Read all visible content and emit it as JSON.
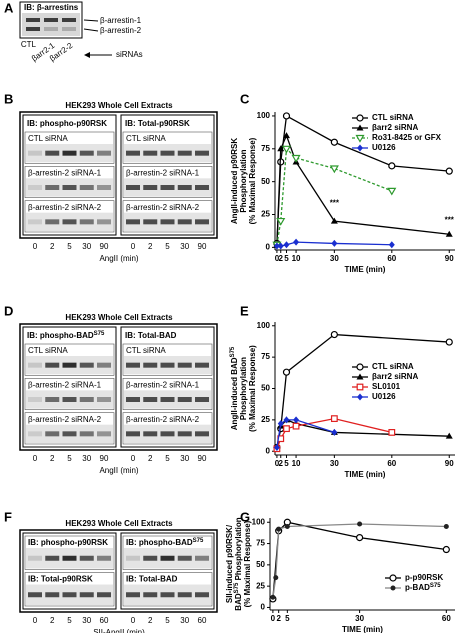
{
  "panels": [
    "A",
    "B",
    "C",
    "D",
    "E",
    "F",
    "G"
  ],
  "panel_a": {
    "header": "IB: β-arrestins",
    "bands": [
      "β-arrestin-1",
      "β-arrestin-2"
    ],
    "lanes": [
      "CTL",
      "βarr2-1",
      "βarr2-2"
    ],
    "lane_note": "siRNAs"
  },
  "blots": [
    {
      "title": "HEK293 Whole Cell Extracts",
      "boxes": [
        {
          "header": "IB: phospho-p90RSK",
          "rows": [
            "CTL siRNA",
            "β-arrestin-2 siRNA-1",
            "β-arrestin-2 siRNA-2"
          ]
        },
        {
          "header": "IB: Total-p90RSK",
          "rows": [
            "CTL siRNA",
            "β-arrestin-2 siRNA-1",
            "β-arrestin-2 siRNA-2"
          ]
        }
      ],
      "lanes": [
        0,
        2,
        5,
        30,
        90
      ],
      "x_label": "AngII (min)"
    },
    {
      "title": "HEK293 Whole Cell Extracts",
      "boxes": [
        {
          "header": [
            "IB: phospho-BAD",
            {
              "sup": "S75"
            }
          ],
          "rows": [
            "CTL siRNA",
            "β-arrestin-2 siRNA-1",
            "β-arrestin-2 siRNA-2"
          ]
        },
        {
          "header": "IB: Total-BAD",
          "rows": [
            "CTL siRNA",
            "β-arrestin-2 siRNA-1",
            "β-arrestin-2 siRNA-2"
          ]
        }
      ],
      "lanes": [
        0,
        2,
        5,
        30,
        90
      ],
      "x_label": "AngII (min)"
    },
    {
      "title": "HEK293 Whole Cell Extracts",
      "boxes": [
        {
          "rows": [
            "IB: phospho-p90RSK",
            "IB: Total-p90RSK"
          ]
        },
        {
          "rows": [
            [
              "IB: phospho-BAD",
              {
                "sup": "S75"
              }
            ],
            "IB: Total-BAD"
          ]
        }
      ],
      "lanes": [
        0,
        2,
        5,
        30,
        60
      ],
      "x_label": "SII-AngII (min)"
    }
  ],
  "chart_data": [
    {
      "type": "line",
      "x_label": "TIME (min)",
      "y_label": [
        "AngII-induced p90RSK",
        "Phosphorylation",
        "(% Maximal Response)"
      ],
      "xlim": [
        -1,
        93
      ],
      "ylim": [
        -2,
        103
      ],
      "xticks": [
        0,
        2,
        5,
        10,
        30,
        60,
        90
      ],
      "yticks": [
        0,
        25,
        50,
        75,
        100
      ],
      "series": [
        {
          "name": "CTL siRNA",
          "color": "#000000",
          "marker": "circle-open",
          "x": [
            0,
            2,
            5,
            30,
            60,
            90
          ],
          "values": [
            3,
            65,
            100,
            80,
            62,
            58
          ]
        },
        {
          "name": "βarr2 siRNA",
          "color": "#000000",
          "marker": "triangle",
          "x": [
            0,
            2,
            5,
            10,
            30,
            90
          ],
          "values": [
            2,
            75,
            85,
            65,
            20,
            10
          ]
        },
        {
          "name": "Ro31-8425 or GFX",
          "color": "#2e9a2e",
          "marker": "triangle-down-open",
          "dashed": true,
          "x": [
            0,
            2,
            5,
            10,
            30,
            60
          ],
          "values": [
            2,
            20,
            75,
            68,
            60,
            43
          ]
        },
        {
          "name": "U0126",
          "color": "#1a2fd0",
          "marker": "diamond",
          "x": [
            0,
            2,
            5,
            10,
            30,
            60
          ],
          "values": [
            1,
            1,
            2,
            4,
            3,
            2
          ]
        }
      ],
      "annotations": [
        {
          "text": "***",
          "x": 30,
          "y": 29
        },
        {
          "text": "***",
          "x": 90,
          "y": 16
        }
      ]
    },
    {
      "type": "line",
      "x_label": "TIME (min)",
      "y_label": [
        [
          "AngII-induced BAD",
          {
            "sup": "S75"
          }
        ],
        "Phosphorylation",
        "(% Maximal Response)"
      ],
      "xlim": [
        -1,
        93
      ],
      "ylim": [
        -3,
        103
      ],
      "xticks": [
        0,
        2,
        5,
        10,
        30,
        60,
        90
      ],
      "yticks": [
        0,
        25,
        50,
        75,
        100
      ],
      "series": [
        {
          "name": "CTL siRNA",
          "color": "#000000",
          "marker": "circle-open",
          "x": [
            0,
            2,
            5,
            30,
            90
          ],
          "values": [
            3,
            18,
            63,
            93,
            87
          ]
        },
        {
          "name": "βarr2 siRNA",
          "color": "#000000",
          "marker": "triangle",
          "x": [
            0,
            2,
            5,
            10,
            30,
            90
          ],
          "values": [
            2,
            20,
            25,
            22,
            15,
            12
          ]
        },
        {
          "name": "SL0101",
          "color": "#e02020",
          "marker": "square-open",
          "x": [
            0,
            2,
            5,
            10,
            30,
            60
          ],
          "values": [
            2,
            10,
            18,
            20,
            26,
            15
          ]
        },
        {
          "name": "U0126",
          "color": "#1a2fd0",
          "marker": "diamond",
          "x": [
            0,
            2,
            5,
            10,
            30
          ],
          "values": [
            3,
            22,
            25,
            25,
            15
          ]
        }
      ]
    },
    {
      "type": "line",
      "x_label": "TIME (min)",
      "y_label": [
        "SII-induced p90RSK/",
        [
          "BAD",
          {
            "sup": "S75"
          },
          " Phosphorylation"
        ],
        "(% Maximal Response)"
      ],
      "xlim": [
        -1,
        63
      ],
      "ylim": [
        -3,
        105
      ],
      "xticks": [
        0,
        2,
        5,
        30,
        60
      ],
      "yticks": [
        0,
        25,
        50,
        75,
        100
      ],
      "series": [
        {
          "name": "p-p90RSK",
          "color": "#000000",
          "marker": "circle-open",
          "x": [
            0,
            2,
            5,
            30,
            60
          ],
          "values": [
            10,
            90,
            100,
            82,
            68
          ]
        },
        {
          "name": [
            "p-BAD",
            {
              "sup": "S75"
            }
          ],
          "color": "#888888",
          "marker": "dot",
          "x": [
            0,
            1,
            2,
            5,
            30,
            60
          ],
          "values": [
            12,
            35,
            92,
            95,
            98,
            95
          ]
        }
      ]
    }
  ]
}
